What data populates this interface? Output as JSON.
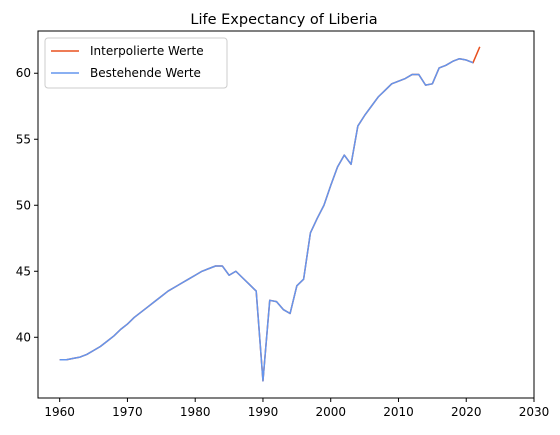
{
  "chart_data": {
    "type": "line",
    "title": "Life Expectancy of Liberia",
    "xlabel": "",
    "ylabel": "",
    "xlim": [
      1956.8,
      2030
    ],
    "ylim": [
      35.4,
      63.2
    ],
    "x_ticks": [
      1960,
      1970,
      1980,
      1990,
      2000,
      2010,
      2020,
      2030
    ],
    "y_ticks": [
      40,
      45,
      50,
      55,
      60
    ],
    "grid": false,
    "legend_position": "top-left",
    "series": [
      {
        "name": "Interpolierte Werte",
        "color": "#e8501e",
        "x": [
          1960,
          1961,
          1962,
          1963,
          1964,
          1965,
          1966,
          1967,
          1968,
          1969,
          1970,
          1971,
          1972,
          1973,
          1974,
          1975,
          1976,
          1977,
          1978,
          1979,
          1980,
          1981,
          1982,
          1983,
          1984,
          1985,
          1986,
          1987,
          1988,
          1989,
          1990,
          1991,
          1992,
          1993,
          1994,
          1995,
          1996,
          1997,
          1998,
          1999,
          2000,
          2001,
          2002,
          2003,
          2004,
          2005,
          2006,
          2007,
          2008,
          2009,
          2010,
          2011,
          2012,
          2013,
          2014,
          2015,
          2016,
          2017,
          2018,
          2019,
          2020,
          2021,
          2022
        ],
        "y": [
          38.3,
          38.3,
          38.4,
          38.5,
          38.7,
          39.0,
          39.3,
          39.7,
          40.1,
          40.6,
          41.0,
          41.5,
          41.9,
          42.3,
          42.7,
          43.1,
          43.5,
          43.8,
          44.1,
          44.4,
          44.7,
          45.0,
          45.2,
          45.4,
          45.4,
          44.7,
          45.0,
          44.5,
          44.0,
          43.5,
          36.7,
          42.8,
          42.7,
          42.1,
          41.8,
          43.9,
          44.4,
          47.9,
          49.0,
          50.0,
          51.5,
          52.9,
          53.8,
          53.1,
          56.0,
          56.8,
          57.5,
          58.2,
          58.7,
          59.2,
          59.4,
          59.6,
          59.9,
          59.9,
          59.1,
          59.2,
          60.4,
          60.6,
          60.9,
          61.1,
          61.0,
          60.8,
          62.0
        ]
      },
      {
        "name": "Bestehende Werte",
        "color": "#6495ed",
        "x": [
          1960,
          1961,
          1962,
          1963,
          1964,
          1965,
          1966,
          1967,
          1968,
          1969,
          1970,
          1971,
          1972,
          1973,
          1974,
          1975,
          1976,
          1977,
          1978,
          1979,
          1980,
          1981,
          1982,
          1983,
          1984,
          1985,
          1986,
          1987,
          1988,
          1989,
          1990,
          1991,
          1992,
          1993,
          1994,
          1995,
          1996,
          1997,
          1998,
          1999,
          2000,
          2001,
          2002,
          2003,
          2004,
          2005,
          2006,
          2007,
          2008,
          2009,
          2010,
          2011,
          2012,
          2013,
          2014,
          2015,
          2016,
          2017,
          2018,
          2019,
          2020,
          2021
        ],
        "y": [
          38.3,
          38.3,
          38.4,
          38.5,
          38.7,
          39.0,
          39.3,
          39.7,
          40.1,
          40.6,
          41.0,
          41.5,
          41.9,
          42.3,
          42.7,
          43.1,
          43.5,
          43.8,
          44.1,
          44.4,
          44.7,
          45.0,
          45.2,
          45.4,
          45.4,
          44.7,
          45.0,
          44.5,
          44.0,
          43.5,
          36.7,
          42.8,
          42.7,
          42.1,
          41.8,
          43.9,
          44.4,
          47.9,
          49.0,
          50.0,
          51.5,
          52.9,
          53.8,
          53.1,
          56.0,
          56.8,
          57.5,
          58.2,
          58.7,
          59.2,
          59.4,
          59.6,
          59.9,
          59.9,
          59.1,
          59.2,
          60.4,
          60.6,
          60.9,
          61.1,
          61.0,
          60.8
        ]
      }
    ]
  }
}
